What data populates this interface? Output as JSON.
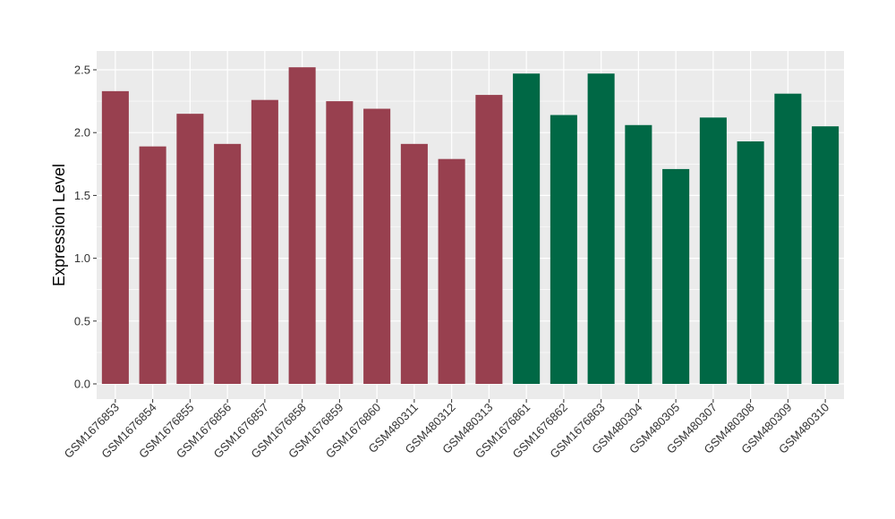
{
  "chart_data": {
    "type": "bar",
    "title": "",
    "xlabel": "",
    "ylabel": "Expression Level",
    "ylim": [
      0,
      2.65
    ],
    "yticks": [
      "0.0",
      "0.5",
      "1.0",
      "1.5",
      "2.0",
      "2.5"
    ],
    "grid": true,
    "legend": "none",
    "categories": [
      "GSM1676853",
      "GSM1676854",
      "GSM1676855",
      "GSM1676856",
      "GSM1676857",
      "GSM1676858",
      "GSM1676859",
      "GSM1676860",
      "GSM480311",
      "GSM480312",
      "GSM480313",
      "GSM1676861",
      "GSM1676862",
      "GSM1676863",
      "GSM480304",
      "GSM480305",
      "GSM480307",
      "GSM480308",
      "GSM480309",
      "GSM480310"
    ],
    "values": [
      2.33,
      1.89,
      2.15,
      1.91,
      2.26,
      2.52,
      2.25,
      2.19,
      1.91,
      1.79,
      2.3,
      2.47,
      2.14,
      2.47,
      2.06,
      1.71,
      2.12,
      1.93,
      2.31,
      2.05
    ],
    "bar_colors": [
      "#98404F",
      "#98404F",
      "#98404F",
      "#98404F",
      "#98404F",
      "#98404F",
      "#98404F",
      "#98404F",
      "#98404F",
      "#98404F",
      "#98404F",
      "#006845",
      "#006845",
      "#006845",
      "#006845",
      "#006845",
      "#006845",
      "#006845",
      "#006845",
      "#006845"
    ],
    "panel_background": "#EBEBEB",
    "grid_color": "#FFFFFF"
  }
}
